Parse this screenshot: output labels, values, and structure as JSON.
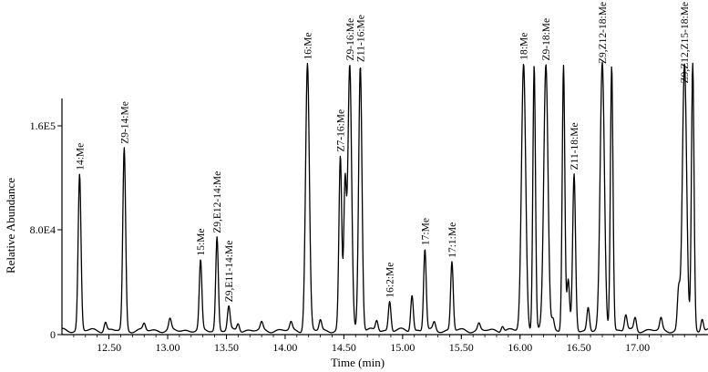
{
  "chart_data": {
    "type": "line",
    "xlabel": "Time (min)",
    "ylabel": "Relative  Abundance",
    "xlim": [
      12.1,
      17.6
    ],
    "ylim": [
      0,
      200000
    ],
    "grid": false,
    "legend": "none",
    "line_color": "#000000",
    "x_ticks": [
      {
        "value": 12.5,
        "label": "12.50"
      },
      {
        "value": 13.0,
        "label": "13.00"
      },
      {
        "value": 13.5,
        "label": "13.50"
      },
      {
        "value": 14.0,
        "label": "14.00"
      },
      {
        "value": 14.5,
        "label": "14.50"
      },
      {
        "value": 15.0,
        "label": "15.00"
      },
      {
        "value": 15.5,
        "label": "15.50"
      },
      {
        "value": 16.0,
        "label": "16.00"
      },
      {
        "value": 16.5,
        "label": "16.50"
      },
      {
        "value": 17.0,
        "label": "17.00"
      }
    ],
    "y_ticks": [
      {
        "value": 0,
        "label": "0"
      },
      {
        "value": 80000,
        "label": "8.0E4"
      },
      {
        "value": 160000,
        "label": "1.6E5"
      }
    ],
    "baseline": 2500,
    "peaks": [
      {
        "label": "14:Me",
        "rt": 12.25,
        "height": 120000,
        "width": 0.012
      },
      {
        "label": "Z9-14:Me",
        "rt": 12.63,
        "height": 140000,
        "width": 0.012
      },
      {
        "label": "15:Me",
        "rt": 13.28,
        "height": 53000,
        "width": 0.011
      },
      {
        "label": "Z9,E12-14:Me",
        "rt": 13.42,
        "height": 72000,
        "width": 0.011
      },
      {
        "label": "Z9,E11-14:Me",
        "rt": 13.52,
        "height": 18000,
        "width": 0.011
      },
      {
        "label": "16:Me",
        "rt": 14.19,
        "height": 205000,
        "width": 0.016
      },
      {
        "label": "Z7-16:Me",
        "rt": 14.47,
        "height": 133000,
        "width": 0.012
      },
      {
        "label": "Z9-16:Me",
        "rt": 14.55,
        "height": 205000,
        "width": 0.016
      },
      {
        "label": "Z11-16:Me",
        "rt": 14.64,
        "height": 205000,
        "width": 0.014
      },
      {
        "label": "16:2:Me",
        "rt": 14.89,
        "height": 23000,
        "width": 0.011
      },
      {
        "label": "17:Me",
        "rt": 15.19,
        "height": 63000,
        "width": 0.011
      },
      {
        "label": "17:1:Me",
        "rt": 15.42,
        "height": 53000,
        "width": 0.011
      },
      {
        "label": "18:Me",
        "rt": 16.03,
        "height": 205000,
        "width": 0.018
      },
      {
        "label": "Z9-18:Me",
        "rt": 16.22,
        "height": 205000,
        "width": 0.018
      },
      {
        "label": "Z11-18:Me",
        "rt": 16.46,
        "height": 120000,
        "width": 0.012
      },
      {
        "label": "Z9,Z12-18:Me",
        "rt": 16.7,
        "height": 205000,
        "width": 0.018
      },
      {
        "label": "Z9,Z12,Z15-18:Me",
        "rt": 17.4,
        "height": 205000,
        "width": 0.018
      }
    ],
    "minor_peaks": [
      [
        12.47,
        7000
      ],
      [
        12.8,
        5000
      ],
      [
        13.02,
        8000
      ],
      [
        13.6,
        6000
      ],
      [
        13.8,
        5500
      ],
      [
        14.05,
        6000
      ],
      [
        14.3,
        8000
      ],
      [
        14.51,
        110000
      ],
      [
        14.78,
        8000
      ],
      [
        15.08,
        28000
      ],
      [
        15.27,
        6000
      ],
      [
        15.65,
        5000
      ],
      [
        15.85,
        4500
      ],
      [
        16.12,
        205000
      ],
      [
        16.28,
        9000
      ],
      [
        16.37,
        205000
      ],
      [
        16.41,
        38000
      ],
      [
        16.58,
        18000
      ],
      [
        16.78,
        205000
      ],
      [
        16.9,
        12000
      ],
      [
        16.98,
        10000
      ],
      [
        17.2,
        9000
      ],
      [
        17.35,
        30000
      ],
      [
        17.47,
        205000
      ],
      [
        17.55,
        10000
      ]
    ]
  }
}
